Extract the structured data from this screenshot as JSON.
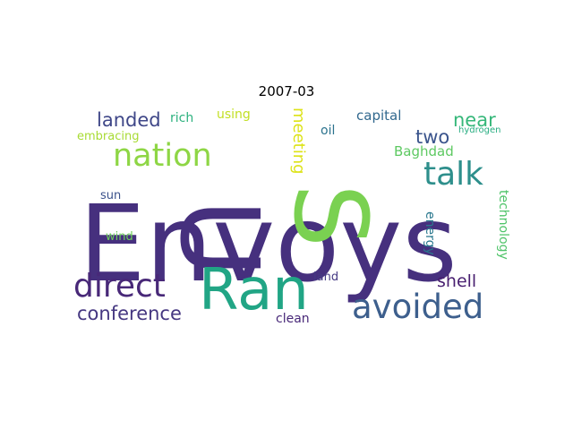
{
  "chart_data": {
    "type": "wordcloud",
    "title": "2007-03",
    "words": [
      {
        "text": "Envoys",
        "weight": 1.0,
        "color": "#46307e"
      },
      {
        "text": "US",
        "weight": 0.92,
        "color": "#46307e",
        "secondary_color": "#7ad151"
      },
      {
        "text": "Ran",
        "weight": 0.55,
        "color": "#21a585"
      },
      {
        "text": "avoided",
        "weight": 0.34,
        "color": "#3d5f8d"
      },
      {
        "text": "direct",
        "weight": 0.33,
        "color": "#482878"
      },
      {
        "text": "talk",
        "weight": 0.33,
        "color": "#2e8f8c"
      },
      {
        "text": "nation",
        "weight": 0.32,
        "color": "#8ed645"
      },
      {
        "text": "conference",
        "weight": 0.19,
        "color": "#453781"
      },
      {
        "text": "landed",
        "weight": 0.19,
        "color": "#3f4788"
      },
      {
        "text": "two",
        "weight": 0.19,
        "color": "#3a548c"
      },
      {
        "text": "near",
        "weight": 0.19,
        "color": "#35b779"
      },
      {
        "text": "shell",
        "weight": 0.17,
        "color": "#481f70"
      },
      {
        "text": "meeting",
        "weight": 0.16,
        "color": "#dde318"
      },
      {
        "text": "Baghdad",
        "weight": 0.13,
        "color": "#5ec962"
      },
      {
        "text": "capital",
        "weight": 0.13,
        "color": "#31688e"
      },
      {
        "text": "technology",
        "weight": 0.12,
        "color": "#50c46a"
      },
      {
        "text": "rich",
        "weight": 0.12,
        "color": "#2cb17e"
      },
      {
        "text": "using",
        "weight": 0.12,
        "color": "#c2df23"
      },
      {
        "text": "oil",
        "weight": 0.12,
        "color": "#2c738e"
      },
      {
        "text": "energy",
        "weight": 0.12,
        "color": "#2a788e"
      },
      {
        "text": "clean",
        "weight": 0.12,
        "color": "#482878"
      },
      {
        "text": "land",
        "weight": 0.11,
        "color": "#443983"
      },
      {
        "text": "embracing",
        "weight": 0.11,
        "color": "#a8db34"
      },
      {
        "text": "sun",
        "weight": 0.11,
        "color": "#3b528b"
      },
      {
        "text": "wind",
        "weight": 0.11,
        "color": "#6ccd5a"
      },
      {
        "text": "hydrogen",
        "weight": 0.08,
        "color": "#27ad81"
      }
    ]
  }
}
